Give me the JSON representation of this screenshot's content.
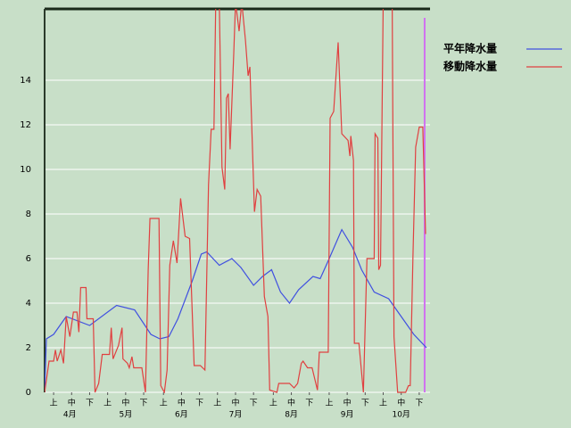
{
  "chart_data": {
    "type": "line",
    "background": "#c8dfc8",
    "xlim": [
      0,
      214
    ],
    "ylim": [
      0,
      17.2
    ],
    "yticks": [
      0,
      2,
      4,
      6,
      8,
      10,
      12,
      14
    ],
    "grid": true,
    "legend": "upper right",
    "xticks": [
      {
        "value": 5,
        "label": "上"
      },
      {
        "value": 15,
        "label": "中"
      },
      {
        "value": 25,
        "label": "下"
      },
      {
        "value": 35,
        "label": "上"
      },
      {
        "value": 45,
        "label": "中"
      },
      {
        "value": 55,
        "label": "下"
      },
      {
        "value": 66,
        "label": "上"
      },
      {
        "value": 76,
        "label": "中"
      },
      {
        "value": 86,
        "label": "下"
      },
      {
        "value": 96,
        "label": "上"
      },
      {
        "value": 106,
        "label": "中"
      },
      {
        "value": 116,
        "label": "下"
      },
      {
        "value": 127,
        "label": "上"
      },
      {
        "value": 137,
        "label": "中"
      },
      {
        "value": 147,
        "label": "下"
      },
      {
        "value": 158,
        "label": "上"
      },
      {
        "value": 168,
        "label": "中"
      },
      {
        "value": 178,
        "label": "下"
      },
      {
        "value": 188,
        "label": "上"
      },
      {
        "value": 198,
        "label": "中"
      },
      {
        "value": 208,
        "label": "下"
      }
    ],
    "month_ticks": [
      {
        "value": 14,
        "label": "4月"
      },
      {
        "value": 45,
        "label": "5月"
      },
      {
        "value": 76,
        "label": "6月"
      },
      {
        "value": 106,
        "label": "7月"
      },
      {
        "value": 137,
        "label": "8月"
      },
      {
        "value": 168,
        "label": "9月"
      },
      {
        "value": 198,
        "label": "10月"
      }
    ],
    "vline": {
      "x": 211,
      "color": "#d070f0"
    },
    "series": [
      {
        "name": "平年降水量",
        "color": "#4050e0",
        "x": [
          0,
          1,
          5,
          12,
          25,
          40,
          50,
          59,
          64,
          69,
          74,
          82,
          87,
          90,
          97,
          104,
          109,
          116,
          121,
          126,
          131,
          136,
          141,
          149,
          153,
          158,
          165,
          171,
          176,
          183,
          191,
          198,
          205,
          212
        ],
        "values": [
          0,
          2.4,
          2.6,
          3.4,
          3.0,
          3.9,
          3.7,
          2.6,
          2.4,
          2.5,
          3.3,
          5.0,
          6.2,
          6.3,
          5.7,
          6.0,
          5.6,
          4.8,
          5.2,
          5.5,
          4.5,
          4.0,
          4.6,
          5.2,
          5.1,
          6.0,
          7.3,
          6.5,
          5.5,
          4.5,
          4.2,
          3.4,
          2.6,
          2.0
        ]
      },
      {
        "name": "移動降水量",
        "color": "#e04040",
        "x": [
          0,
          2.5,
          5,
          6,
          7,
          9,
          10.5,
          12,
          14,
          16,
          18,
          19,
          20,
          23,
          23.5,
          27,
          28,
          30,
          32,
          36,
          37,
          38,
          41,
          43,
          43.5,
          46,
          47,
          48.5,
          49.5,
          54,
          56,
          57.5,
          58.5,
          63.5,
          64.5,
          66.5,
          68,
          69.5,
          71.5,
          73.5,
          75.5,
          78,
          80.5,
          83,
          86.5,
          89,
          91,
          92.5,
          94,
          95,
          97,
          98.5,
          100,
          101,
          102,
          103,
          105,
          106,
          108,
          109.5,
          111.5,
          113,
          114,
          116.5,
          118,
          120,
          122,
          124,
          125,
          129,
          130,
          136,
          138.5,
          140.5,
          142.5,
          143.5,
          146,
          148.5,
          151.5,
          152.5,
          157.5,
          158.5,
          160.5,
          163,
          165,
          168.5,
          169.5,
          170,
          171.5,
          172,
          174.5,
          177,
          179,
          183,
          183.5,
          185,
          185.5,
          186.5,
          188,
          193,
          194,
          196,
          200.5,
          202,
          203,
          204.5,
          206,
          208,
          210,
          211.5
        ],
        "values": [
          0,
          1.4,
          1.4,
          1.9,
          1.4,
          1.9,
          1.3,
          3.4,
          2.5,
          3.6,
          3.6,
          2.7,
          4.7,
          4.7,
          3.3,
          3.3,
          0,
          0.4,
          1.7,
          1.7,
          2.9,
          1.5,
          2.1,
          2.9,
          1.5,
          1.3,
          1.1,
          1.6,
          1.1,
          1.1,
          0,
          5.5,
          7.8,
          7.8,
          0.3,
          0,
          1.0,
          5.7,
          6.8,
          5.8,
          8.7,
          7.0,
          6.9,
          1.2,
          1.2,
          1.0,
          9.3,
          11.8,
          11.8,
          17.5,
          17.5,
          10.1,
          9.1,
          13.2,
          13.4,
          10.9,
          15.2,
          17.5,
          16.2,
          17.5,
          15.8,
          14.2,
          14.6,
          8.1,
          9.1,
          8.8,
          4.3,
          3.4,
          0.1,
          0,
          0.4,
          0.4,
          0.2,
          0.4,
          1.3,
          1.4,
          1.1,
          1.1,
          0.1,
          1.8,
          1.8,
          12.3,
          12.6,
          15.7,
          11.6,
          11.3,
          10.6,
          11.5,
          10.4,
          2.2,
          2.2,
          0,
          6.0,
          6.0,
          11.6,
          11.4,
          5.5,
          5.7,
          17.5,
          17.5,
          2.5,
          0,
          0,
          0.3,
          0.3,
          6.0,
          11.0,
          11.9,
          11.9,
          7.1
        ]
      }
    ]
  }
}
